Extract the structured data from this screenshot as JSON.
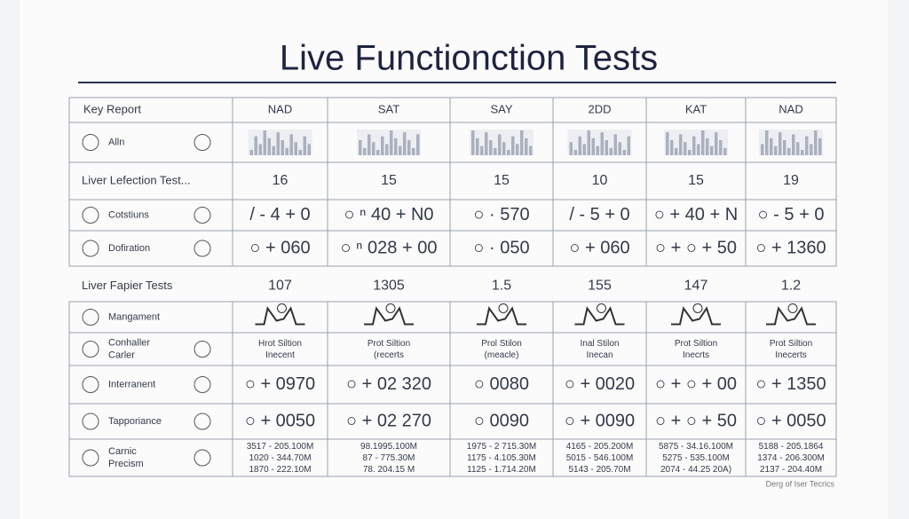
{
  "header": {
    "title": "Live Functionction Tests"
  },
  "table": {
    "columns": [
      "Key Report",
      "NAD",
      "SAT",
      "SAY",
      "2DD",
      "KAT",
      "NAD"
    ],
    "sections": [
      [
        {
          "label": "Alln"
        },
        {
          "label": "Liver Lefection Test...",
          "cells": [
            16,
            15,
            15,
            10,
            15,
            19
          ]
        },
        {
          "label": "Cotstiuns",
          "cells": [
            "/ - 4 + 0",
            "○ ⁿ 40 + N0",
            "○ · 570",
            "/ - 5 + 0",
            "○ + 40 + N",
            "○ - 5 + 0"
          ]
        },
        {
          "label": "Dofiration",
          "cells": [
            "○ + 060",
            "○ ⁿ 028 + 00",
            "○ · 050",
            "○ + 060",
            "○ + ○ + 50",
            "○ + 1360"
          ]
        }
      ],
      [
        {
          "label": "Liver Fapier Tests",
          "cells": [
            107,
            1305,
            1.5,
            155,
            147,
            1.2
          ]
        },
        {
          "label": "Mangament"
        },
        {
          "label": [
            "Conhaller",
            "Carler"
          ],
          "cells": [
            [
              "Hrot Siltion",
              "Inecent"
            ],
            [
              "Prot Siltion",
              "(recerts"
            ],
            [
              "Prol Stilon",
              "(meacle)"
            ],
            [
              "Inal Stilon",
              "Inecan"
            ],
            [
              "Prot Siltion",
              "Inecrts"
            ],
            [
              "Prot Siltion",
              "Inecerts"
            ]
          ]
        },
        {
          "label": "Interranent",
          "cells": [
            "○ + 0970",
            "○ + 02 320",
            "○ 0080",
            "○ + 0020",
            "○ + ○ + 00",
            "○ + 1350"
          ]
        },
        {
          "label": "Tapporiance",
          "cells": [
            "○ + 0050",
            "○ + 02 270",
            "○ 0090",
            "○ + 0090",
            "○ + ○ + 50",
            "○ + 0050"
          ]
        },
        {
          "label": [
            "Carnic",
            "Precism"
          ],
          "cells": [
            [
              "3517 - 205.100M",
              "1020 - 344.70M",
              "1870 - 222.10M"
            ],
            [
              "98.1995.100M",
              "87 - 775.30M",
              "78. 204.15 M"
            ],
            [
              "1975 - 2 715.30M",
              "1175 - 4.105.30M",
              "1125 - 1.714.20M"
            ],
            [
              "4165 - 205.200M",
              "5015 - 546.100M",
              "5143 - 205.70M"
            ],
            [
              "5875 - 34.16.100M",
              "5275 - 535.100M",
              "2074 - 44.25 20A)"
            ],
            [
              "5188 - 205.1864",
              "1374 - 206.300M",
              "2137 - 204.40M"
            ]
          ]
        }
      ]
    ]
  },
  "footer": {
    "note": "Derg of Iser Tecrics"
  }
}
